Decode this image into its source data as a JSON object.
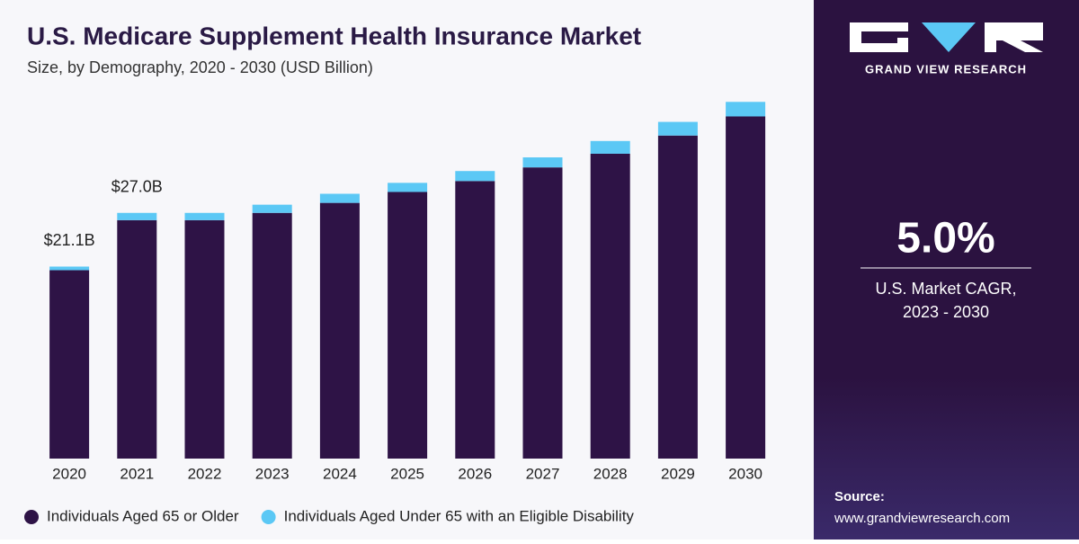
{
  "chart_data": {
    "type": "stacked_bar",
    "title": "U.S. Medicare Supplement Health Insurance Market",
    "subtitle": "Size, by Demography, 2020 - 2030 (USD Billion)",
    "categories": [
      "2020",
      "2021",
      "2022",
      "2023",
      "2024",
      "2025",
      "2026",
      "2027",
      "2028",
      "2029",
      "2030"
    ],
    "series": [
      {
        "name": "Individuals Aged 65 or Older",
        "color": "#2e1346",
        "values": [
          20.7,
          26.2,
          26.2,
          27.0,
          28.1,
          29.3,
          30.5,
          32.0,
          33.5,
          35.5,
          37.6
        ]
      },
      {
        "name": "Individuals Aged Under 65 with an Eligible Disability",
        "color": "#5bc8f5",
        "values": [
          0.4,
          0.8,
          0.8,
          0.9,
          1.0,
          1.0,
          1.1,
          1.1,
          1.4,
          1.5,
          1.6
        ]
      }
    ],
    "annotations": [
      {
        "category": "2020",
        "value": 21.1,
        "label": "$21.1B"
      },
      {
        "category": "2021",
        "value": 27.0,
        "label": "$27.0B"
      }
    ]
  },
  "sidebar": {
    "brand": "GRAND VIEW RESEARCH",
    "stat": "5.0%",
    "stat_label": [
      "U.S. Market CAGR,",
      "2023 - 2030"
    ],
    "source_label": "Source:",
    "source_url": "www.grandviewresearch.com"
  }
}
